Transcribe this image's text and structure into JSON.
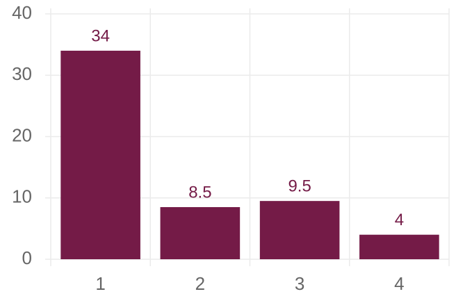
{
  "chart_data": {
    "type": "bar",
    "categories": [
      "1",
      "2",
      "3",
      "4"
    ],
    "values": [
      34,
      8.5,
      9.5,
      4
    ],
    "color": "#741b47",
    "ylim": [
      0,
      40
    ],
    "yticks": [
      0,
      10,
      20,
      30,
      40
    ],
    "grid": true
  }
}
